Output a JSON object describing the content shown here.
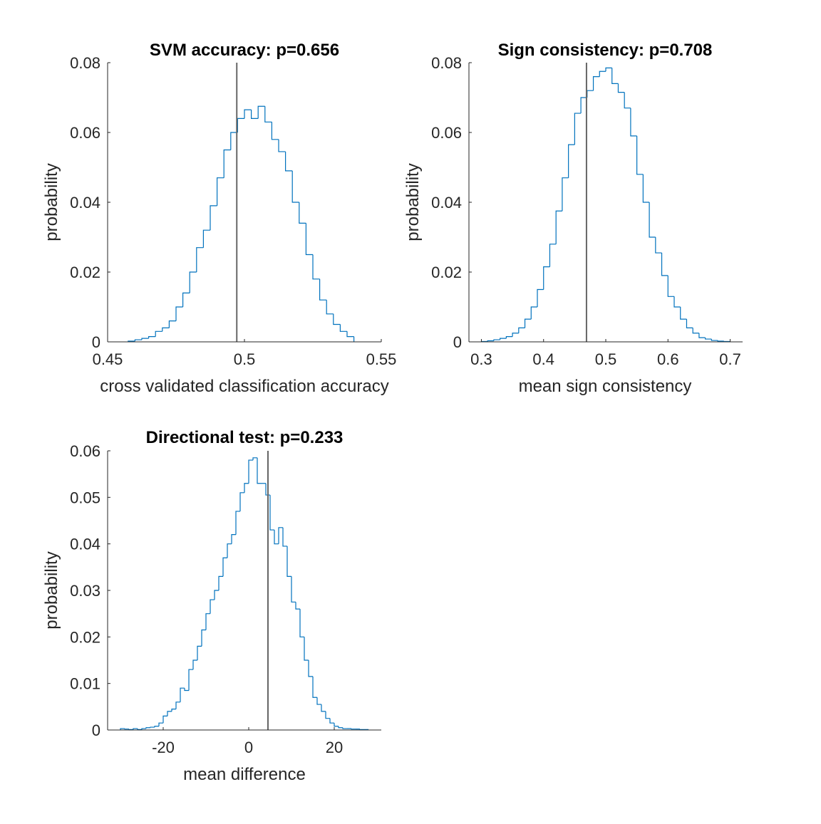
{
  "colors": {
    "histogram": "#0072BD",
    "reference": "#666666",
    "axis": "#262626"
  },
  "chart_data": [
    {
      "type": "histogram",
      "title": "SVM accuracy: p=0.656",
      "xlabel": "cross validated classification accuracy",
      "ylabel": "probability",
      "xlim": [
        0.45,
        0.55
      ],
      "ylim": [
        0,
        0.08
      ],
      "xticks": [
        0.45,
        0.5,
        0.55
      ],
      "xtick_labels": [
        "0.45",
        "0.5",
        "0.55"
      ],
      "yticks": [
        0,
        0.02,
        0.04,
        0.06,
        0.08
      ],
      "ytick_labels": [
        "0",
        "0.02",
        "0.04",
        "0.06",
        "0.08"
      ],
      "bin_edges": [
        0.4575,
        0.46,
        0.4625,
        0.465,
        0.4675,
        0.47,
        0.4725,
        0.475,
        0.4775,
        0.48,
        0.4825,
        0.485,
        0.4875,
        0.49,
        0.4925,
        0.495,
        0.4975,
        0.5,
        0.5025,
        0.505,
        0.5075,
        0.51,
        0.5125,
        0.515,
        0.5175,
        0.52,
        0.5225,
        0.525,
        0.5275,
        0.53,
        0.5325,
        0.535,
        0.5375,
        0.54
      ],
      "values": [
        0.0002,
        0.0006,
        0.001,
        0.0015,
        0.003,
        0.004,
        0.006,
        0.01,
        0.014,
        0.02,
        0.027,
        0.032,
        0.039,
        0.047,
        0.055,
        0.06,
        0.064,
        0.0665,
        0.064,
        0.0675,
        0.063,
        0.058,
        0.0545,
        0.049,
        0.04,
        0.034,
        0.025,
        0.018,
        0.012,
        0.008,
        0.005,
        0.003,
        0.0015
      ],
      "reference_value": 0.4972
    },
    {
      "type": "histogram",
      "title": "Sign consistency: p=0.708",
      "xlabel": "mean sign consistency",
      "ylabel": "probability",
      "xlim": [
        0.28,
        0.72
      ],
      "ylim": [
        0,
        0.08
      ],
      "xticks": [
        0.3,
        0.4,
        0.5,
        0.6,
        0.7
      ],
      "xtick_labels": [
        "0.3",
        "0.4",
        "0.5",
        "0.6",
        "0.7"
      ],
      "yticks": [
        0,
        0.02,
        0.04,
        0.06,
        0.08
      ],
      "ytick_labels": [
        "0",
        "0.02",
        "0.04",
        "0.06",
        "0.08"
      ],
      "bin_edges": [
        0.3,
        0.31,
        0.32,
        0.33,
        0.34,
        0.35,
        0.36,
        0.37,
        0.38,
        0.39,
        0.4,
        0.41,
        0.42,
        0.43,
        0.44,
        0.45,
        0.46,
        0.47,
        0.48,
        0.49,
        0.5,
        0.51,
        0.52,
        0.53,
        0.54,
        0.55,
        0.56,
        0.57,
        0.58,
        0.59,
        0.6,
        0.61,
        0.62,
        0.63,
        0.64,
        0.65,
        0.66,
        0.67,
        0.68,
        0.69,
        0.7
      ],
      "values": [
        0.0001,
        0.0003,
        0.0006,
        0.001,
        0.0015,
        0.0025,
        0.004,
        0.0065,
        0.01,
        0.015,
        0.0215,
        0.028,
        0.0375,
        0.047,
        0.0565,
        0.0655,
        0.07,
        0.072,
        0.076,
        0.0775,
        0.0785,
        0.074,
        0.0715,
        0.067,
        0.059,
        0.048,
        0.04,
        0.03,
        0.0255,
        0.019,
        0.013,
        0.01,
        0.0065,
        0.004,
        0.0025,
        0.0012,
        0.0008,
        0.0004,
        0.0002,
        0.0001
      ],
      "reference_value": 0.469
    },
    {
      "type": "histogram",
      "title": "Directional test: p=0.233",
      "xlabel": "mean difference",
      "ylabel": "probability",
      "xlim": [
        -33,
        31
      ],
      "ylim": [
        0,
        0.06
      ],
      "xticks": [
        -20,
        0,
        20
      ],
      "xtick_labels": [
        "-20",
        "0",
        "20"
      ],
      "yticks": [
        0,
        0.01,
        0.02,
        0.03,
        0.04,
        0.05,
        0.06
      ],
      "ytick_labels": [
        "0",
        "0.01",
        "0.02",
        "0.03",
        "0.04",
        "0.05",
        "0.06"
      ],
      "bin_edges": [
        -30,
        -29,
        -28,
        -27,
        -26,
        -25,
        -24,
        -23,
        -22,
        -21,
        -20,
        -19,
        -18,
        -17,
        -16,
        -15,
        -14,
        -13,
        -12,
        -11,
        -10,
        -9,
        -8,
        -7,
        -6,
        -5,
        -4,
        -3,
        -2,
        -1,
        0,
        1,
        2,
        3,
        4,
        5,
        6,
        7,
        8,
        9,
        10,
        11,
        12,
        13,
        14,
        15,
        16,
        17,
        18,
        19,
        20,
        21,
        22,
        23,
        24,
        25,
        26,
        27,
        28
      ],
      "values": [
        0.0003,
        0.0002,
        0.0001,
        0.0003,
        0.0001,
        0.0003,
        0.0005,
        0.0006,
        0.0008,
        0.0015,
        0.003,
        0.004,
        0.0045,
        0.006,
        0.009,
        0.0085,
        0.013,
        0.015,
        0.018,
        0.0215,
        0.025,
        0.028,
        0.03,
        0.033,
        0.037,
        0.04,
        0.042,
        0.047,
        0.051,
        0.053,
        0.058,
        0.0585,
        0.053,
        0.053,
        0.0505,
        0.043,
        0.04,
        0.0435,
        0.0395,
        0.033,
        0.0275,
        0.026,
        0.02,
        0.015,
        0.0115,
        0.007,
        0.0055,
        0.004,
        0.0025,
        0.0015,
        0.0008,
        0.0005,
        0.0003,
        0.0003,
        0.0002,
        0.0002,
        0.0001,
        0.0001
      ],
      "reference_value": 4.5
    }
  ]
}
